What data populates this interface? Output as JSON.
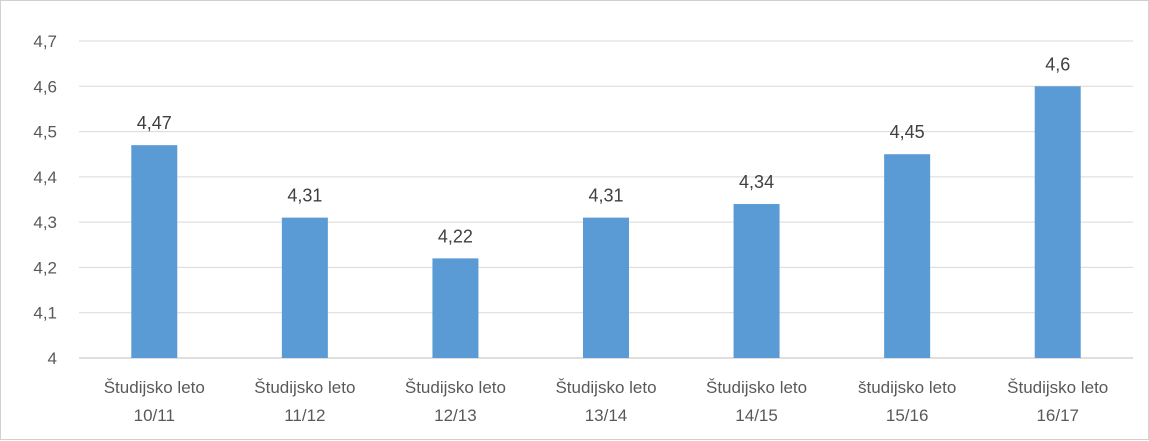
{
  "chart_data": {
    "type": "bar",
    "title": "",
    "xlabel": "",
    "ylabel": "",
    "categories": [
      [
        "Študijsko leto",
        "10/11"
      ],
      [
        "Študijsko leto",
        "11/12"
      ],
      [
        "Študijsko leto",
        "12/13"
      ],
      [
        "Študijsko leto",
        "13/14"
      ],
      [
        "Študijsko leto",
        "14/15"
      ],
      [
        "študijsko leto",
        "15/16"
      ],
      [
        "Študijsko leto",
        "16/17"
      ]
    ],
    "values": [
      4.47,
      4.31,
      4.22,
      4.31,
      4.34,
      4.45,
      4.6
    ],
    "data_labels": [
      "4,47",
      "4,31",
      "4,22",
      "4,31",
      "4,34",
      "4,45",
      "4,6"
    ],
    "ylim": [
      4,
      4.7
    ],
    "y_ticks": [
      4,
      4.1,
      4.2,
      4.3,
      4.4,
      4.5,
      4.6,
      4.7
    ],
    "y_tick_labels": [
      "4",
      "4,1",
      "4,2",
      "4,3",
      "4,4",
      "4,5",
      "4,6",
      "4,7"
    ],
    "grid": true,
    "legend": "none",
    "colors": {
      "bar": "#5b9bd5",
      "grid": "#d9d9d9",
      "axis": "#bfbfbf"
    }
  }
}
